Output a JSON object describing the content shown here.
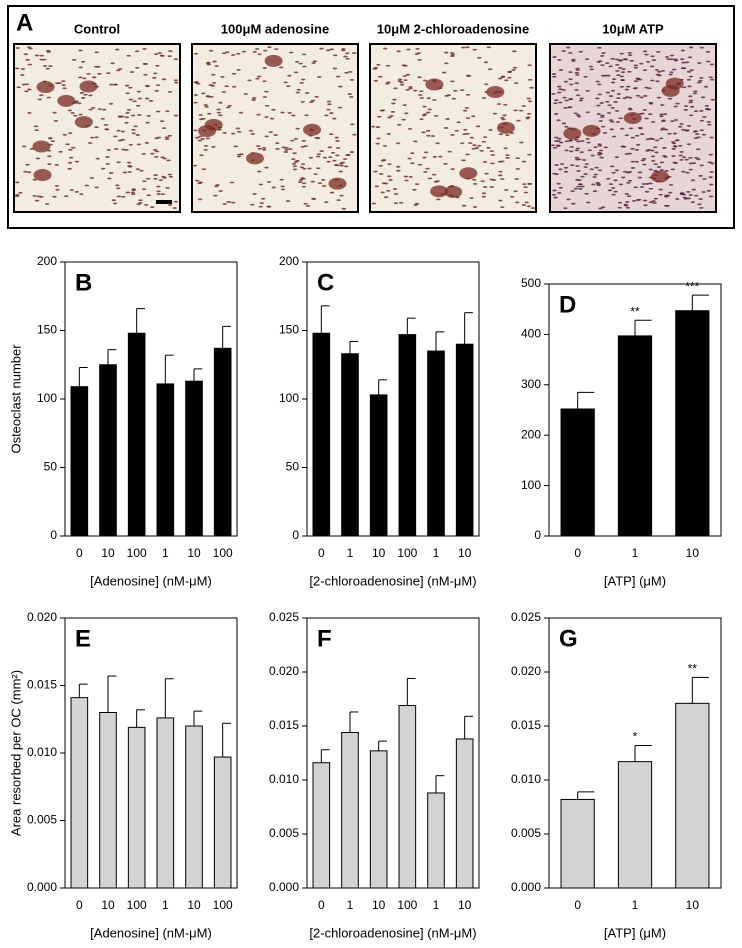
{
  "images": {
    "label": "A",
    "titles": [
      "Control",
      "100μM adenosine",
      "10μM 2-chloroadenosine",
      "10μM ATP"
    ]
  },
  "chart_data": [
    {
      "type": "bar",
      "panel": "B",
      "ylabel": "Osteoclast number",
      "xlabel": "[Adenosine] (nM-μM)",
      "color": "#000000",
      "categories": [
        "0",
        "10",
        "100",
        "1",
        "10",
        "100"
      ],
      "values": [
        109,
        125,
        148,
        111,
        113,
        137
      ],
      "errors": [
        14,
        11,
        18,
        21,
        9,
        16
      ],
      "ylim": [
        0,
        200
      ],
      "yticks": [
        0,
        50,
        100,
        150,
        200
      ]
    },
    {
      "type": "bar",
      "panel": "C",
      "xlabel": "[2-chloroadenosine] (nM-μM)",
      "color": "#000000",
      "categories": [
        "0",
        "1",
        "10",
        "100",
        "1",
        "10"
      ],
      "values": [
        148,
        133,
        103,
        147,
        135,
        140
      ],
      "errors": [
        20,
        9,
        11,
        12,
        14,
        23
      ],
      "ylim": [
        0,
        200
      ],
      "yticks": [
        0,
        50,
        100,
        150,
        200
      ]
    },
    {
      "type": "bar",
      "panel": "D",
      "xlabel": "[ATP] (μM)",
      "color": "#000000",
      "categories": [
        "0",
        "1",
        "10"
      ],
      "values": [
        252,
        397,
        447
      ],
      "errors": [
        33,
        31,
        31
      ],
      "annotations": [
        null,
        "**",
        "***"
      ],
      "ylim": [
        0,
        500
      ],
      "yticks": [
        0,
        100,
        200,
        300,
        400,
        500
      ]
    },
    {
      "type": "bar",
      "panel": "E",
      "ylabel": "Area resorbed per OC (mm²)",
      "xlabel": "[Adenosine] (nM-μM)",
      "color": "#d3d3d3",
      "categories": [
        "0",
        "10",
        "100",
        "1",
        "10",
        "100"
      ],
      "values": [
        0.0141,
        0.013,
        0.0119,
        0.0126,
        0.012,
        0.0097
      ],
      "errors": [
        0.001,
        0.0027,
        0.0013,
        0.0029,
        0.0011,
        0.0025
      ],
      "ylim": [
        0,
        0.02
      ],
      "yticks": [
        {
          "value": 0,
          "label": "0.000"
        },
        {
          "value": 0.005,
          "label": "0.005"
        },
        {
          "value": 0.01,
          "label": "0.010"
        },
        {
          "value": 0.015,
          "label": "0.015"
        },
        {
          "value": 0.02,
          "label": "0.020"
        }
      ]
    },
    {
      "type": "bar",
      "panel": "F",
      "xlabel": "[2-chloroadenosine] (nM-μM)",
      "color": "#d3d3d3",
      "categories": [
        "0",
        "1",
        "10",
        "100",
        "1",
        "10"
      ],
      "values": [
        0.0116,
        0.0144,
        0.0127,
        0.0169,
        0.0088,
        0.0138
      ],
      "errors": [
        0.0012,
        0.0019,
        0.0009,
        0.0025,
        0.0016,
        0.0021
      ],
      "ylim": [
        0,
        0.025
      ],
      "yticks": [
        {
          "value": 0,
          "label": "0.000"
        },
        {
          "value": 0.005,
          "label": "0.005"
        },
        {
          "value": 0.01,
          "label": "0.010"
        },
        {
          "value": 0.015,
          "label": "0.015"
        },
        {
          "value": 0.02,
          "label": "0.020"
        },
        {
          "value": 0.025,
          "label": "0.025"
        }
      ]
    },
    {
      "type": "bar",
      "panel": "G",
      "xlabel": "[ATP] (μM)",
      "color": "#d3d3d3",
      "categories": [
        "0",
        "1",
        "10"
      ],
      "values": [
        0.0082,
        0.0117,
        0.0171
      ],
      "errors": [
        0.0007,
        0.0015,
        0.0024
      ],
      "annotations": [
        null,
        "*",
        "**"
      ],
      "ylim": [
        0,
        0.025
      ],
      "yticks": [
        {
          "value": 0,
          "label": "0.000"
        },
        {
          "value": 0.005,
          "label": "0.005"
        },
        {
          "value": 0.01,
          "label": "0.010"
        },
        {
          "value": 0.015,
          "label": "0.015"
        },
        {
          "value": 0.02,
          "label": "0.020"
        },
        {
          "value": 0.025,
          "label": "0.025"
        }
      ]
    }
  ]
}
